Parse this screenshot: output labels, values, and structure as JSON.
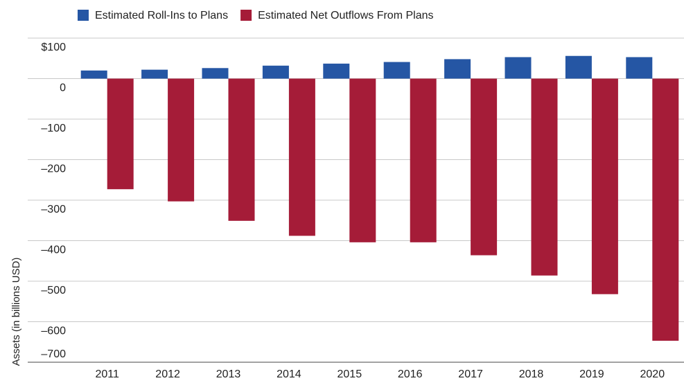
{
  "chart_data": {
    "type": "bar",
    "y_label": "Assets (in billions USD)",
    "categories": [
      "2011",
      "2012",
      "2013",
      "2014",
      "2015",
      "2016",
      "2017",
      "2018",
      "2019",
      "2020"
    ],
    "series": [
      {
        "name": "Estimated Roll-Ins to Plans",
        "color": "#2556a4",
        "values": [
          20,
          22,
          26,
          32,
          37,
          41,
          48,
          53,
          56,
          53
        ]
      },
      {
        "name": "Estimated Net Outflows From Plans",
        "color": "#a51c38",
        "values": [
          -273,
          -303,
          -351,
          -388,
          -404,
          -404,
          -436,
          -486,
          -532,
          -647
        ]
      }
    ],
    "ylim": [
      -700,
      100
    ],
    "yticks": [
      {
        "value": 100,
        "label": "$100"
      },
      0,
      {
        "value": -100,
        "label": "–100"
      },
      {
        "value": -200,
        "label": "–200"
      },
      {
        "value": -300,
        "label": "–300"
      },
      {
        "value": -400,
        "label": "–400"
      },
      {
        "value": -500,
        "label": "–500"
      },
      {
        "value": -600,
        "label": "–600"
      },
      {
        "value": -700,
        "label": "–700"
      }
    ],
    "grid": true,
    "legend": "top"
  }
}
